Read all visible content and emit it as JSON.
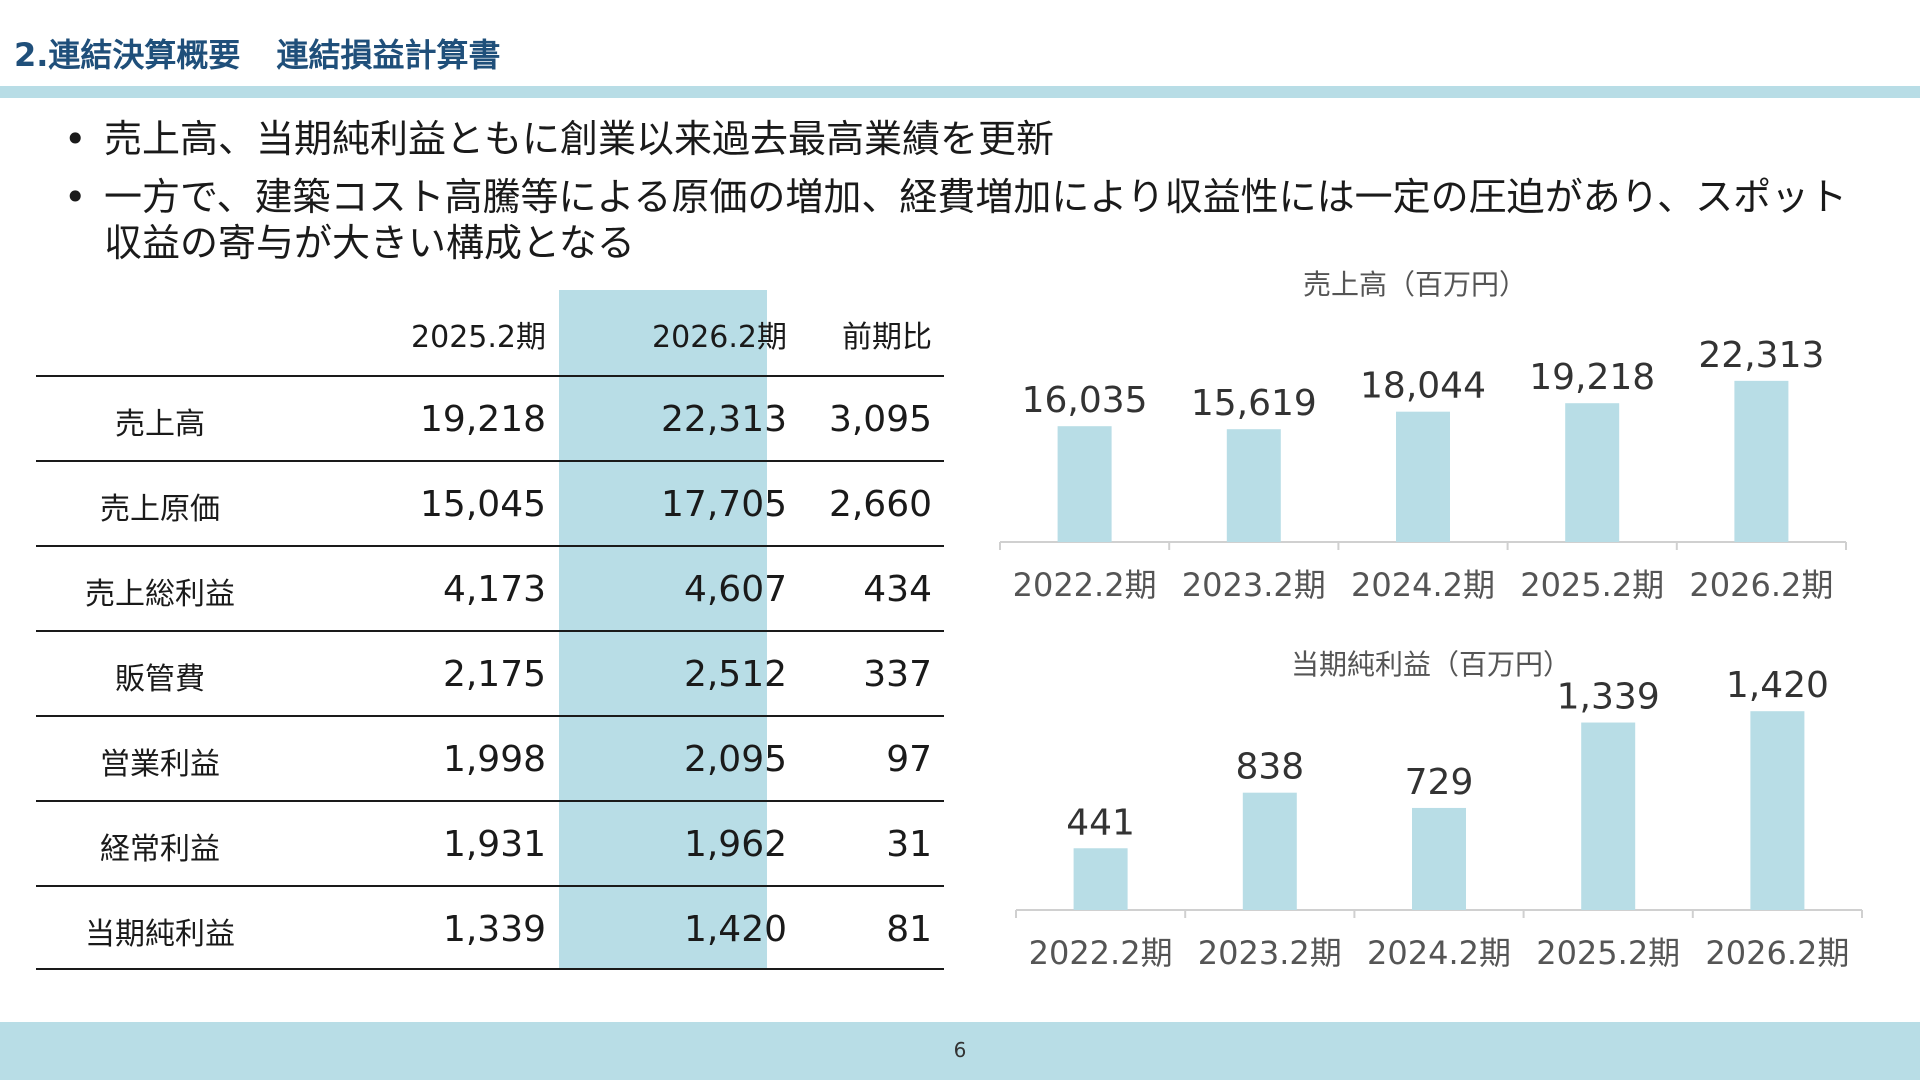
{
  "header": {
    "section": "2.連結決算概要",
    "subtitle": "連結損益計算書"
  },
  "bullets": [
    "売上高、当期純利益ともに創業以来過去最高業績を更新",
    "一方で、建築コスト高騰等による原価の増加、経費増加により収益性には一定の圧迫があり、スポット収益の寄与が大きい構成となる"
  ],
  "table": {
    "columns": [
      "2025.2期",
      "2026.2期",
      "前期比"
    ],
    "highlight_color": "#b8dde6",
    "rows": [
      {
        "label": "売上高",
        "v1": "19,218",
        "v2": "22,313",
        "diff": "3,095"
      },
      {
        "label": "売上原価",
        "v1": "15,045",
        "v2": "17,705",
        "diff": "2,660"
      },
      {
        "label": "売上総利益",
        "v1": "4,173",
        "v2": "4,607",
        "diff": "434"
      },
      {
        "label": "販管費",
        "v1": "2,175",
        "v2": "2,512",
        "diff": "337"
      },
      {
        "label": "営業利益",
        "v1": "1,998",
        "v2": "2,095",
        "diff": "97"
      },
      {
        "label": "経常利益",
        "v1": "1,931",
        "v2": "1,962",
        "diff": "31"
      },
      {
        "label": "当期純利益",
        "v1": "1,339",
        "v2": "1,420",
        "diff": "81"
      }
    ]
  },
  "chart_data": [
    {
      "type": "bar",
      "title": "売上高（百万円）",
      "categories": [
        "2022.2期",
        "2023.2期",
        "2024.2期",
        "2025.2期",
        "2026.2期"
      ],
      "values": [
        16035,
        15619,
        18044,
        19218,
        22313
      ],
      "labels": [
        "16,035",
        "15,619",
        "18,044",
        "19,218",
        "22,313"
      ],
      "bar_color": "#b8dde6",
      "ylim": [
        0,
        36000
      ]
    },
    {
      "type": "bar",
      "title": "当期純利益（百万円）",
      "categories": [
        "2022.2期",
        "2023.2期",
        "2024.2期",
        "2025.2期",
        "2026.2期"
      ],
      "values": [
        441,
        838,
        729,
        1339,
        1420
      ],
      "labels": [
        "441",
        "838",
        "729",
        "1,339",
        "1,420"
      ],
      "bar_color": "#b8dde6",
      "ylim": [
        0,
        2000
      ]
    }
  ],
  "footer": {
    "page_number": "6"
  }
}
